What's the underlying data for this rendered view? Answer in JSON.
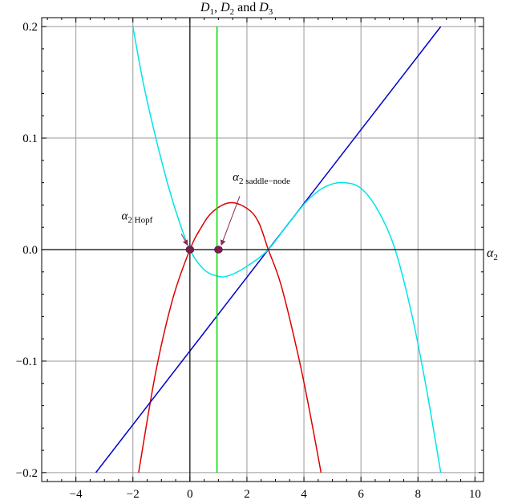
{
  "chart_data": {
    "type": "line",
    "title_parts": {
      "d": "D",
      "sub1": "1",
      "sep1": ", ",
      "sub2": "2",
      "and": " and ",
      "sub3": "3"
    },
    "xlabel_parts": {
      "alpha": "α",
      "sub": "2"
    },
    "xlim": [
      -5.2,
      10.3
    ],
    "ylim": [
      -0.208,
      0.208
    ],
    "grid": true,
    "x_ticks": [
      -4,
      -2,
      0,
      2,
      4,
      6,
      8,
      10
    ],
    "x_tick_labels": [
      "−4",
      "−2",
      "0",
      "2",
      "4",
      "6",
      "8",
      "10"
    ],
    "y_ticks": [
      0.2,
      0.1,
      0.0,
      -0.1,
      -0.2
    ],
    "y_tick_labels": [
      "0.2",
      "0.1",
      "0.0",
      "−0.1",
      "−0.2"
    ],
    "colors": {
      "red": "#dd0000",
      "blue": "#0000cc",
      "cyan": "#00e5e5",
      "green": "#00dd00",
      "marker": "#7a1d4a",
      "arrow": "#8a2a55",
      "grid": "#999999",
      "axis": "#000000"
    },
    "series": [
      {
        "color_key": "red",
        "x": [
          -1.8,
          -1.2,
          -0.6,
          0.0,
          0.4,
          0.8,
          1.4,
          2.0,
          2.4,
          2.75,
          3.2,
          3.8,
          4.2,
          4.6
        ],
        "y": [
          -0.2,
          -0.11,
          -0.044,
          0.0,
          0.02,
          0.034,
          0.042,
          0.037,
          0.025,
          0.0,
          -0.032,
          -0.095,
          -0.145,
          -0.2
        ]
      },
      {
        "color_key": "blue",
        "x": [
          -3.3,
          8.8
        ],
        "y": [
          -0.2,
          0.2
        ]
      },
      {
        "color_key": "cyan",
        "x": [
          -2.0,
          -1.6,
          -1.0,
          -0.5,
          0.0,
          0.5,
          1.0,
          1.4,
          2.0,
          2.75,
          3.5,
          4.2,
          4.8,
          5.4,
          6.0,
          6.6,
          7.2,
          7.8,
          8.3,
          8.8
        ],
        "y": [
          0.2,
          0.145,
          0.08,
          0.035,
          0.0,
          -0.018,
          -0.024,
          -0.023,
          -0.015,
          0.0,
          0.025,
          0.046,
          0.057,
          0.06,
          0.055,
          0.035,
          0.0,
          -0.06,
          -0.125,
          -0.2
        ]
      },
      {
        "color_key": "green",
        "x": [
          0.95,
          0.95
        ],
        "y": [
          -0.2,
          0.2
        ]
      }
    ],
    "points": [
      {
        "x": 0.0,
        "y": 0.0
      },
      {
        "x": 1.0,
        "y": 0.0
      }
    ],
    "annotations": [
      {
        "alpha": "α",
        "sub": "2 Hopf",
        "text_x": -2.4,
        "text_y": 0.027,
        "arrow_from": [
          -0.3,
          0.014
        ],
        "arrow_to": [
          -0.08,
          0.004
        ]
      },
      {
        "alpha": "α",
        "sub": "2 saddle−node",
        "text_x": 1.5,
        "text_y": 0.062,
        "arrow_from": [
          1.75,
          0.048
        ],
        "arrow_to": [
          1.1,
          0.004
        ]
      }
    ]
  }
}
